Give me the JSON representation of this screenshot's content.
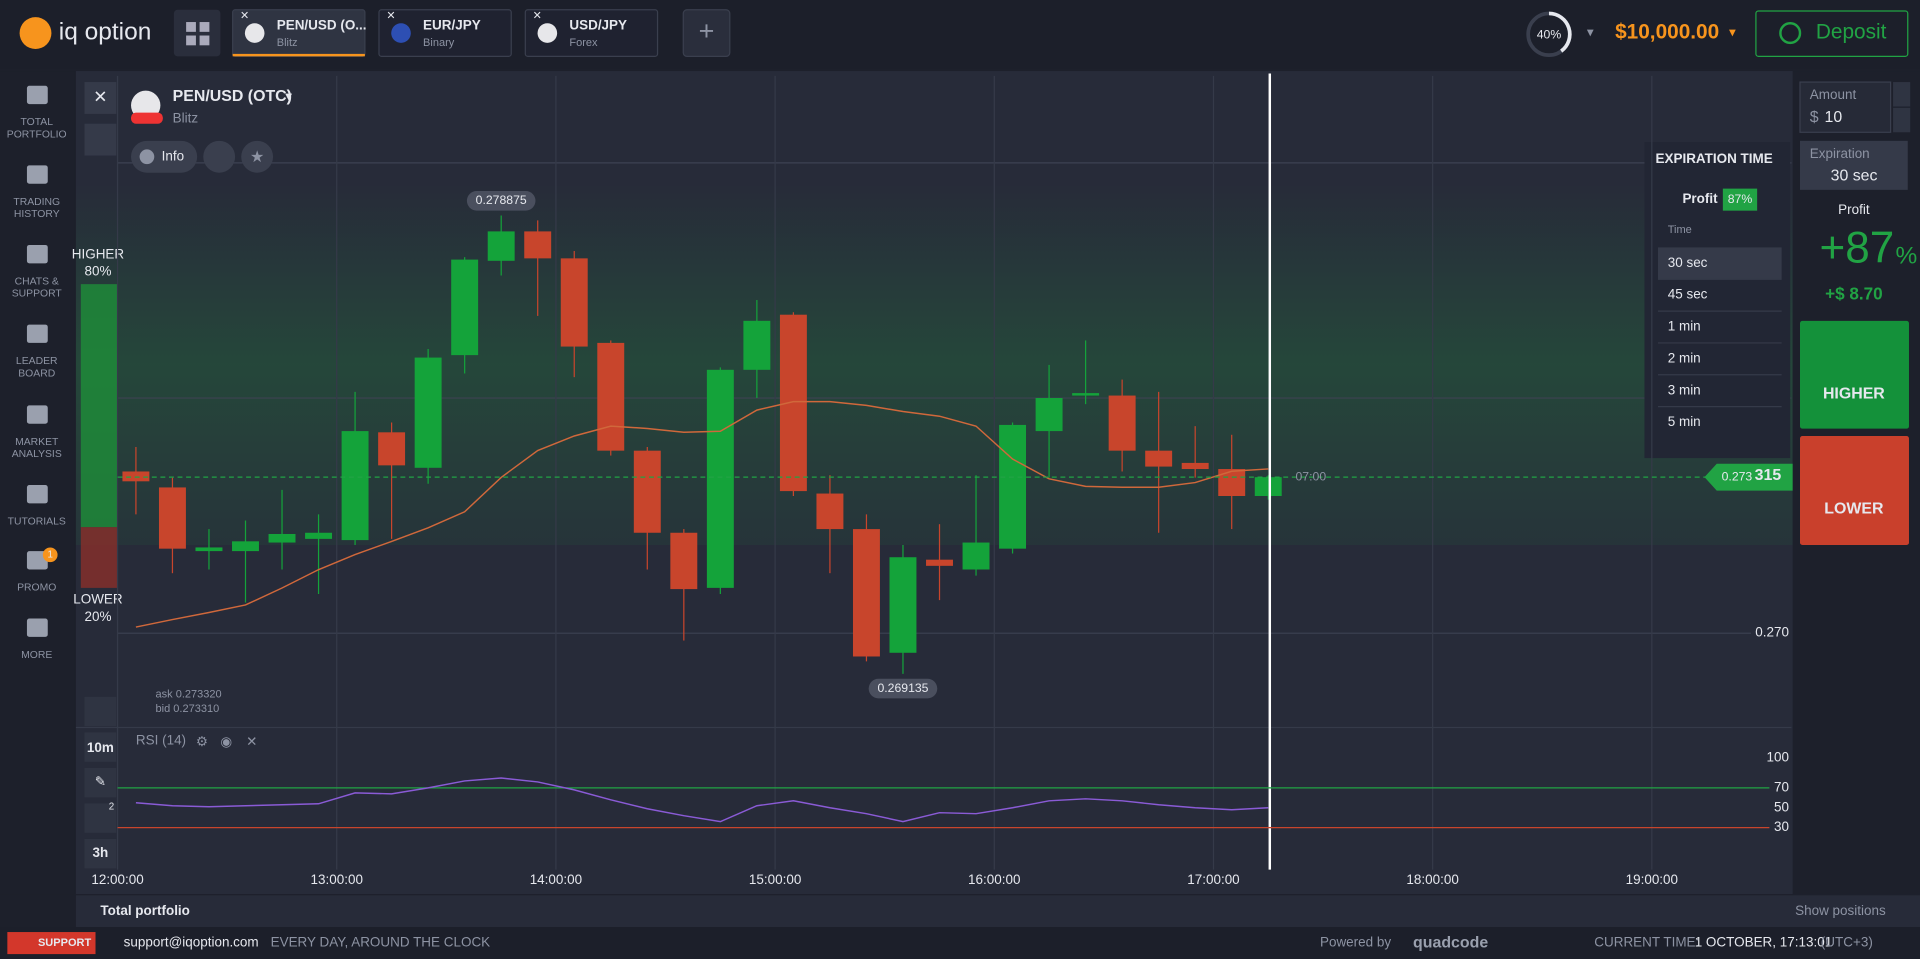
{
  "header": {
    "logo": "iq option",
    "tabs": [
      {
        "title": "PEN/USD (O...",
        "sub": "Blitz"
      },
      {
        "title": "EUR/JPY",
        "sub": "Binary"
      },
      {
        "title": "USD/JPY",
        "sub": "Forex"
      }
    ],
    "level": {
      "value": 40,
      "label": "40%"
    },
    "balance": "$10,000.00",
    "deposit": "Deposit"
  },
  "sidebar": {
    "items": [
      [
        "TOTAL",
        "PORTFOLIO"
      ],
      [
        "TRADING",
        "HISTORY"
      ],
      [
        "CHATS &",
        "SUPPORT"
      ],
      [
        "LEADER",
        "BOARD"
      ],
      [
        "MARKET",
        "ANALYSIS"
      ],
      [
        "TUTORIALS"
      ],
      [
        "PROMO"
      ],
      [
        "MORE"
      ]
    ],
    "promo_badge": "1"
  },
  "asset": {
    "name": "PEN/USD (OTC)",
    "type": "Blitz",
    "info": "Info"
  },
  "sentiment": {
    "higher": "HIGHER",
    "higher_pct": {
      "value": 80,
      "label": "80%"
    },
    "lower": "LOWER",
    "lower_pct": {
      "value": 20,
      "label": "20%"
    }
  },
  "chart": {
    "ylim": [
      0.2681,
      0.28184
    ],
    "yticks": [
      {
        "value": 0.27,
        "label": "0.270"
      }
    ],
    "candles": [
      {
        "open": 0.273436,
        "high": 0.273956,
        "low": 0.272525,
        "close": 0.273227
      },
      {
        "open": 0.273097,
        "high": 0.273305,
        "low": 0.271275,
        "close": 0.271796
      },
      {
        "open": 0.271744,
        "high": 0.272212,
        "low": 0.271353,
        "close": 0.271822
      },
      {
        "open": 0.271744,
        "high": 0.272394,
        "low": 0.270651,
        "close": 0.271952
      },
      {
        "open": 0.271926,
        "high": 0.273045,
        "low": 0.271353,
        "close": 0.272108
      },
      {
        "open": 0.272004,
        "high": 0.272525,
        "low": 0.270833,
        "close": 0.272134
      },
      {
        "open": 0.271978,
        "high": 0.275127,
        "low": 0.271874,
        "close": 0.274294
      },
      {
        "open": 0.274268,
        "high": 0.274477,
        "low": 0.272004,
        "close": 0.273566
      },
      {
        "open": 0.273514,
        "high": 0.276038,
        "low": 0.273175,
        "close": 0.275856
      },
      {
        "open": 0.275908,
        "high": 0.27799,
        "low": 0.275518,
        "close": 0.277938
      },
      {
        "open": 0.277912,
        "high": 0.278875,
        "low": 0.2776,
        "close": 0.278537
      },
      {
        "open": 0.278537,
        "high": 0.278771,
        "low": 0.276741,
        "close": 0.277964
      },
      {
        "open": 0.277964,
        "high": 0.27812,
        "low": 0.27544,
        "close": 0.27609
      },
      {
        "open": 0.276168,
        "high": 0.27622,
        "low": 0.273774,
        "close": 0.273878
      },
      {
        "open": 0.273878,
        "high": 0.273956,
        "low": 0.271353,
        "close": 0.272134
      },
      {
        "open": 0.272134,
        "high": 0.272212,
        "low": 0.269844,
        "close": 0.270937
      },
      {
        "open": 0.270963,
        "high": 0.275648,
        "low": 0.270833,
        "close": 0.275596
      },
      {
        "open": 0.275596,
        "high": 0.277079,
        "low": 0.274997,
        "close": 0.276637
      },
      {
        "open": 0.276767,
        "high": 0.276819,
        "low": 0.272915,
        "close": 0.273019
      },
      {
        "open": 0.272967,
        "high": 0.273357,
        "low": 0.271275,
        "close": 0.272212
      },
      {
        "open": 0.272212,
        "high": 0.272525,
        "low": 0.269401,
        "close": 0.269505
      },
      {
        "open": 0.269584,
        "high": 0.271874,
        "low": 0.269135,
        "close": 0.271614
      },
      {
        "open": 0.271562,
        "high": 0.272316,
        "low": 0.270703,
        "close": 0.271431
      },
      {
        "open": 0.271353,
        "high": 0.273357,
        "low": 0.271223,
        "close": 0.271926
      },
      {
        "open": 0.271796,
        "high": 0.274477,
        "low": 0.271692,
        "close": 0.274425
      },
      {
        "open": 0.274294,
        "high": 0.2757,
        "low": 0.273305,
        "close": 0.274997
      },
      {
        "open": 0.275049,
        "high": 0.27622,
        "low": 0.274867,
        "close": 0.275101
      },
      {
        "open": 0.275049,
        "high": 0.275388,
        "low": 0.273436,
        "close": 0.273878
      },
      {
        "open": 0.273878,
        "high": 0.275127,
        "low": 0.272134,
        "close": 0.27354
      },
      {
        "open": 0.273618,
        "high": 0.274399,
        "low": 0.273305,
        "close": 0.273488
      },
      {
        "open": 0.273488,
        "high": 0.274216,
        "low": 0.272212,
        "close": 0.272915
      },
      {
        "open": 0.272915,
        "high": 0.273357,
        "low": 0.272837,
        "close": 0.273315
      }
    ],
    "moving_average": [
      0.27013,
      0.27029,
      0.27044,
      0.2706,
      0.27096,
      0.27135,
      0.27167,
      0.27195,
      0.27224,
      0.27258,
      0.27331,
      0.27388,
      0.27419,
      0.2744,
      0.27435,
      0.27427,
      0.27429,
      0.27474,
      0.27492,
      0.27492,
      0.27484,
      0.27471,
      0.27461,
      0.2744,
      0.2737,
      0.27328,
      0.27312,
      0.2731,
      0.2731,
      0.2732,
      0.27344,
      0.27349
    ],
    "max_label": "0.278875",
    "min_label": "0.269135",
    "price_tag": [
      "0.273",
      "315"
    ],
    "timer": "07:00",
    "ask": "ask 0.273320",
    "bid": "bid 0.273310",
    "time_labels": [
      "12:00:00",
      "13:00:00",
      "14:00:00",
      "15:00:00",
      "16:00:00",
      "17:00:00",
      "18:00:00",
      "19:00:00"
    ],
    "rsi": {
      "label": "RSI (14)",
      "ylim": [
        0,
        100
      ],
      "yticks": [
        100,
        70,
        50,
        30
      ],
      "values": [
        55,
        52,
        51,
        52,
        53,
        54,
        65,
        64,
        70,
        77,
        80,
        76,
        68,
        58,
        49,
        42,
        36,
        52,
        57,
        50,
        44,
        36,
        45,
        44,
        50,
        57,
        59,
        57,
        53,
        50,
        48,
        50
      ]
    },
    "tools": {
      "period": "10m",
      "range": "3h",
      "badge": "2"
    }
  },
  "expiration_menu": {
    "title": "EXPIRATION TIME",
    "profit": "Profit",
    "profit_pct": "87%",
    "time": "Time",
    "options": [
      "30 sec",
      "45 sec",
      "1 min",
      "2 min",
      "3 min",
      "5 min"
    ]
  },
  "trade_panel": {
    "amount": "Amount",
    "currency": "$",
    "amount_value": "10",
    "expiration": "Expiration",
    "expiration_value": "30 sec",
    "profit": "Profit",
    "profit_value": "+87",
    "profit_unit": "%",
    "profit_amount": "+$ 8.70",
    "higher": "HIGHER",
    "lower": "LOWER"
  },
  "bottom_bar": {
    "title": "Total portfolio",
    "show": "Show positions"
  },
  "footer": {
    "support": "SUPPORT",
    "email": "support@iqoption.com",
    "hours": "EVERY DAY, AROUND THE CLOCK",
    "powered": "Powered by",
    "brand": "quadcode",
    "time_label": "CURRENT TIME:",
    "time": "1 OCTOBER, 17:13:01",
    "zone": "(UTC+3)"
  }
}
